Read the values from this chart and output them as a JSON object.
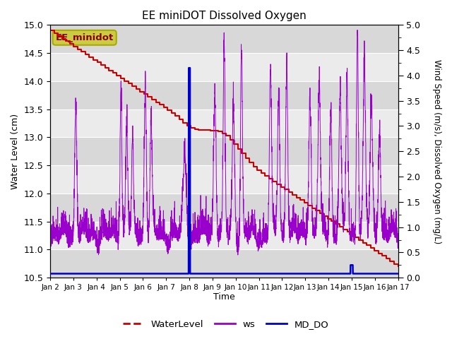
{
  "title": "EE miniDOT Dissolved Oxygen",
  "xlabel": "Time",
  "ylabel_left": "Water Level (cm)",
  "ylabel_right": "Wind Speed (m/s), Dissolved Oxygen (mg/L)",
  "ylim_left": [
    10.5,
    15.0
  ],
  "ylim_right": [
    0.0,
    5.0
  ],
  "n_days": 15,
  "xtick_labels": [
    "Jan 2",
    "Jan 3",
    "Jan 4",
    "Jan 5",
    "Jan 6",
    "Jan 7",
    "Jan 8",
    "Jan 9",
    "Jan 10",
    "Jan 11",
    "Jan 12",
    "Jan 13",
    "Jan 14",
    "Jan 15",
    "Jan 16",
    "Jan 17"
  ],
  "plot_bg_color": "#e8e8e8",
  "band_color_light": "#ebebeb",
  "band_color_dark": "#d8d8d8",
  "water_level_color": "#cc0000",
  "ws_color": "#9900cc",
  "md_do_color": "#0000cc",
  "legend_items": [
    "WaterLevel",
    "ws",
    "MD_DO"
  ],
  "annotation_text": "EE_minidot",
  "annotation_box_facecolor": "#cccc44",
  "annotation_box_edgecolor": "#aaaa00"
}
